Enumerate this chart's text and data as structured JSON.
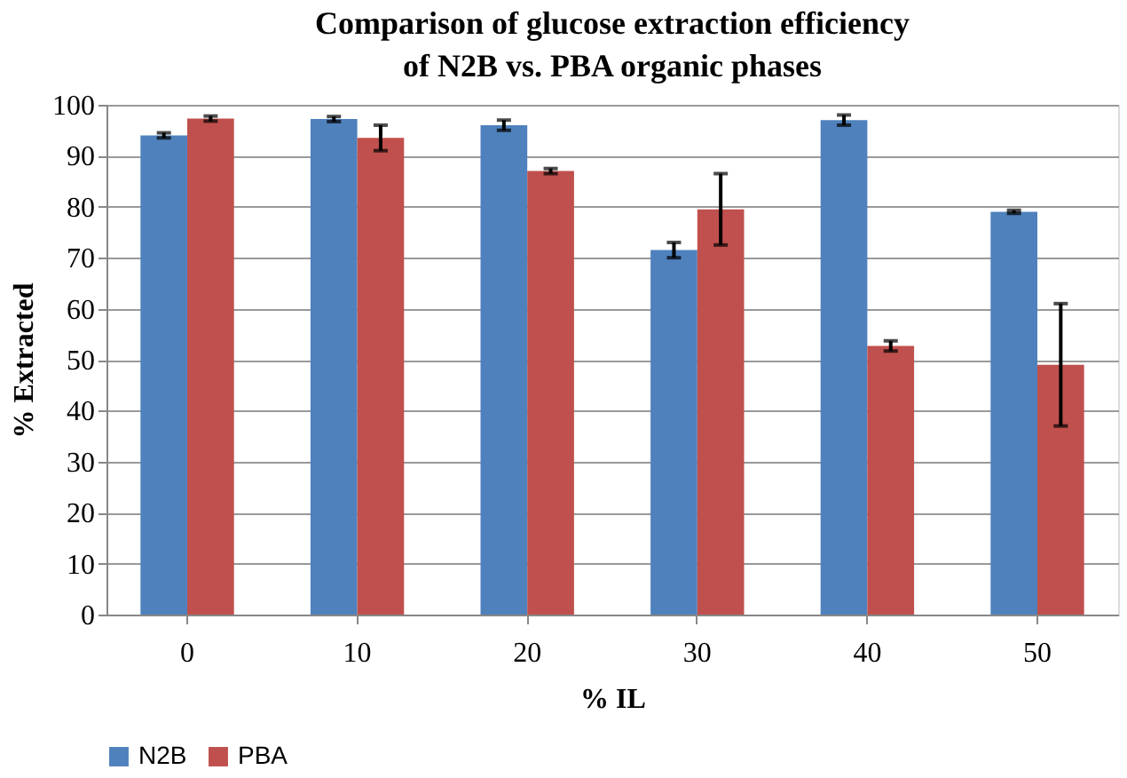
{
  "chart_data": {
    "type": "bar",
    "title": "Comparison of glucose extraction efficiency of N2B vs. PBA organic phases",
    "xlabel": "% IL",
    "ylabel": "% Extracted",
    "categories": [
      "0",
      "10",
      "20",
      "30",
      "40",
      "50"
    ],
    "series": [
      {
        "name": "N2B",
        "color": "#4f81bd",
        "values": [
          94,
          97.2,
          96,
          71.5,
          97,
          79
        ],
        "errors": [
          0.5,
          0.5,
          1,
          1.5,
          1,
          0.3
        ]
      },
      {
        "name": "PBA",
        "color": "#c0504d",
        "values": [
          97.3,
          93.5,
          87,
          79.5,
          52.7,
          49
        ],
        "errors": [
          0.5,
          2.5,
          0.5,
          7,
          1,
          12
        ]
      }
    ],
    "ylim": [
      0,
      100
    ],
    "yticks": [
      0,
      10,
      20,
      30,
      40,
      50,
      60,
      70,
      80,
      90,
      100
    ],
    "grid": "y",
    "legend": "bottom"
  }
}
